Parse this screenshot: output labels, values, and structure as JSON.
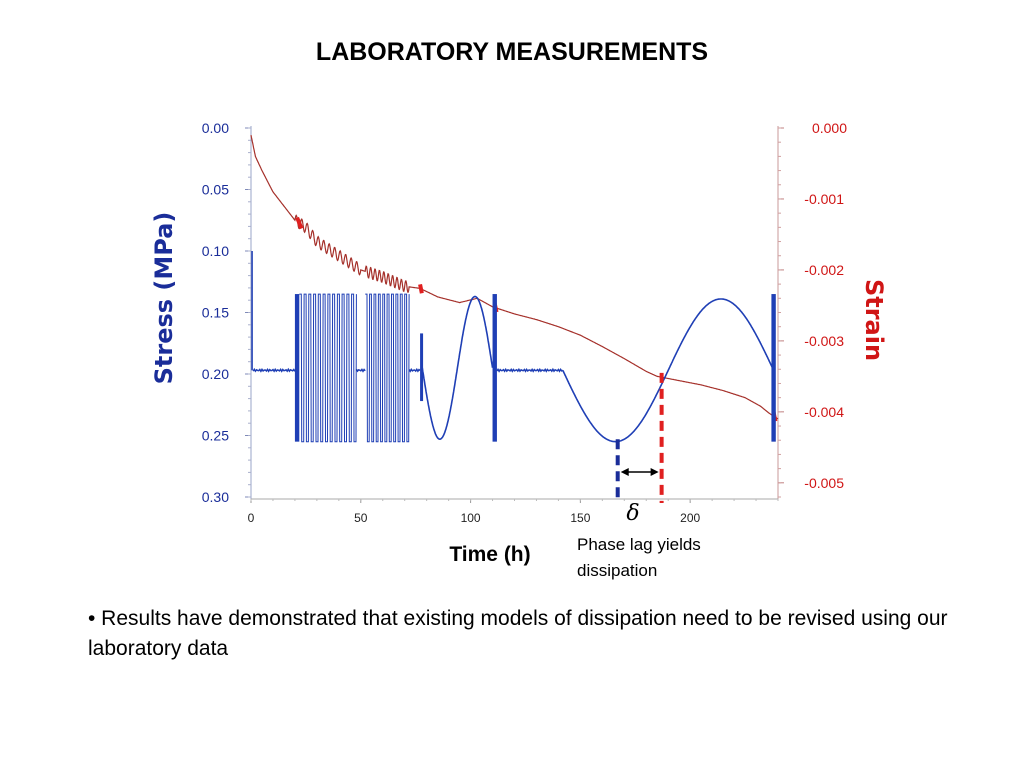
{
  "slide": {
    "title": "LABORATORY MEASUREMENTS",
    "annotation_line1": "Phase lag yields",
    "annotation_line2": "dissipation",
    "bullet": "• Results have demonstrated that existing models of dissipation need to be revised using our laboratory data"
  },
  "chart_data": {
    "type": "line",
    "xlabel": "Time (h)",
    "ylabel_left": "Stress (MPa)",
    "ylabel_right": "Strain",
    "x_ticks": [
      0,
      50,
      100,
      150,
      200
    ],
    "xlim": [
      0,
      240
    ],
    "y_left_ticks": [
      "0.00",
      "0.05",
      "0.10",
      "0.15",
      "0.20",
      "0.25",
      "0.30"
    ],
    "y_left_lim": [
      0.0,
      0.3
    ],
    "y_left_inverted": true,
    "y_right_ticks": [
      "0.000",
      "-0.001",
      "-0.002",
      "-0.003",
      "-0.004",
      "-0.005"
    ],
    "y_right_lim": [
      0.0,
      -0.0052
    ],
    "phase_lag_symbol": "δ",
    "colors": {
      "stress": "#1f3fb5",
      "strain": "#a5302a",
      "left_axis_text": "#1a2d99",
      "right_axis_text": "#d01515",
      "marker_stress": "#1a2d99",
      "marker_strain": "#e02020"
    },
    "series": [
      {
        "name": "Stress (MPa)",
        "axis": "left",
        "segments": [
          {
            "kind": "spike",
            "x": 0.5,
            "y1": 0.1,
            "y2": 0.197
          },
          {
            "kind": "flat",
            "x1": 1,
            "x2": 20,
            "y": 0.197
          },
          {
            "kind": "burst",
            "x1": 20,
            "x2": 22,
            "y_min": 0.135,
            "y_max": 0.255
          },
          {
            "kind": "square",
            "x1": 22,
            "x2": 48,
            "y_min": 0.135,
            "y_max": 0.255,
            "cycles": 12
          },
          {
            "kind": "flat",
            "x1": 48,
            "x2": 52,
            "y": 0.197
          },
          {
            "kind": "square",
            "x1": 52,
            "x2": 72,
            "y_min": 0.135,
            "y_max": 0.255,
            "cycles": 10
          },
          {
            "kind": "flat",
            "x1": 72,
            "x2": 77,
            "y": 0.197
          },
          {
            "kind": "burst",
            "x1": 77,
            "x2": 78,
            "y_min": 0.167,
            "y_max": 0.222
          },
          {
            "kind": "sine",
            "x1": 78,
            "x2": 110,
            "y_center": 0.195,
            "amplitude": 0.058,
            "phase": "down-first"
          },
          {
            "kind": "burst",
            "x1": 110,
            "x2": 112,
            "y_min": 0.135,
            "y_max": 0.255
          },
          {
            "kind": "flat",
            "x1": 112,
            "x2": 142,
            "y": 0.197
          },
          {
            "kind": "sine",
            "x1": 142,
            "x2": 238,
            "y_center": 0.197,
            "amplitude": 0.058,
            "phase": "down-first"
          },
          {
            "kind": "burst",
            "x1": 237,
            "x2": 239,
            "y_min": 0.135,
            "y_max": 0.255
          }
        ]
      },
      {
        "name": "Strain",
        "axis": "right",
        "x": [
          0,
          2,
          5,
          10,
          15,
          20,
          25,
          30,
          40,
          50,
          60,
          70,
          77,
          85,
          95,
          103,
          110,
          120,
          130,
          140,
          150,
          160,
          170,
          180,
          185,
          195,
          205,
          215,
          225,
          232,
          236,
          240
        ],
        "y": [
          -0.0001,
          -0.0004,
          -0.0006,
          -0.0009,
          -0.0011,
          -0.0013,
          -0.0014,
          -0.0016,
          -0.0018,
          -0.002,
          -0.0021,
          -0.00223,
          -0.00226,
          -0.00238,
          -0.00246,
          -0.0024,
          -0.00252,
          -0.00262,
          -0.0027,
          -0.0028,
          -0.00292,
          -0.00308,
          -0.00325,
          -0.00343,
          -0.0035,
          -0.00356,
          -0.00362,
          -0.0037,
          -0.0038,
          -0.00392,
          -0.00402,
          -0.0041
        ],
        "oscillations": [
          {
            "x1": 20,
            "x2": 50,
            "amplitude": 8e-05,
            "cycles": 12
          },
          {
            "x1": 52,
            "x2": 72,
            "amplitude": 8e-05,
            "cycles": 10
          }
        ],
        "highlight_points": [
          {
            "x": 21,
            "x2": 23
          },
          {
            "x": 77
          },
          {
            "x": 111
          },
          {
            "x": 238
          }
        ]
      }
    ],
    "phase_markers": [
      {
        "name": "stress-minimum",
        "x": 167,
        "axis": "left",
        "y": 0.253,
        "color": "#1a2d99"
      },
      {
        "name": "strain-crossing",
        "x": 187,
        "axis": "right",
        "y": -0.00345,
        "color": "#e02020"
      }
    ]
  }
}
